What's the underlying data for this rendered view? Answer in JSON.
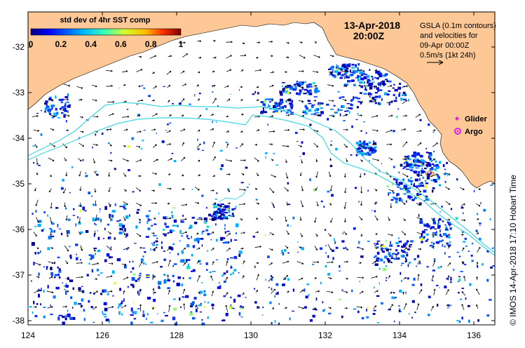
{
  "map": {
    "colors": {
      "land": "#fdc895",
      "ocean": "#ffffff",
      "contour": "#3fd6e0",
      "glider": "#e020e0",
      "argo": "#e020e0"
    },
    "x_axis": {
      "ticks": [
        "124",
        "126",
        "128",
        "130",
        "132",
        "134",
        "136"
      ]
    },
    "y_axis": {
      "ticks": [
        "-32",
        "-33",
        "-34",
        "-35",
        "-36",
        "-37",
        "-38"
      ]
    },
    "date": "13-Apr-2018",
    "time": "20:00Z",
    "colorbar": {
      "title": "std dev of 4hr SST comp",
      "labels": [
        "0",
        "0.2",
        "0.4",
        "0.6",
        "0.8",
        "1"
      ]
    },
    "gsla_legend": {
      "line1": "GSLA (0.1m contours)",
      "line2": "and velocities for",
      "line3": "09-Apr 00:00Z",
      "line4": "0.5m/s (1kt 24h)"
    },
    "markers": {
      "glider_label": "Glider",
      "argo_label": "Argo"
    },
    "credit": "©  IMOS 14-Apr-2018 17:10 Hobart Time"
  }
}
